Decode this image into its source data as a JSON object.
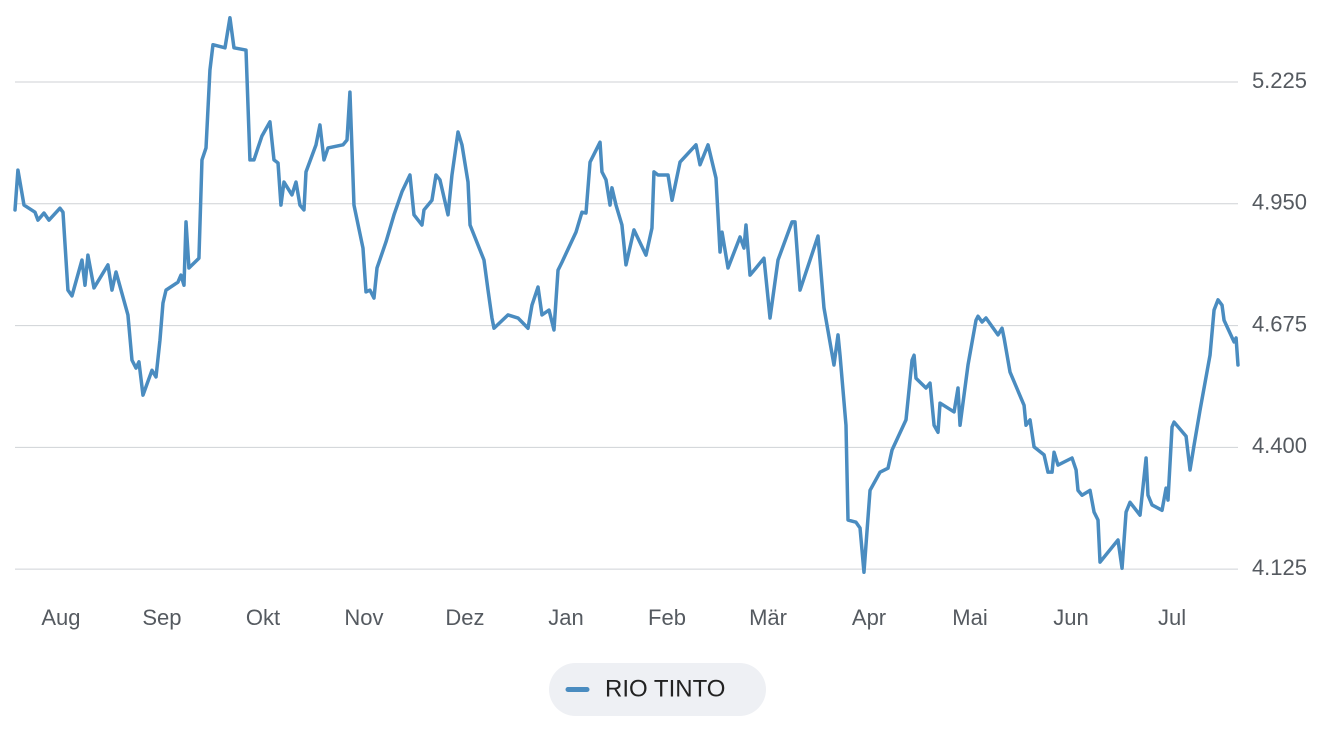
{
  "chart_data": {
    "type": "line",
    "xlim": [
      -0.455,
      11.653
    ],
    "xticks": [
      {
        "value": 0,
        "label": "Aug"
      },
      {
        "value": 1,
        "label": "Sep"
      },
      {
        "value": 2,
        "label": "Okt"
      },
      {
        "value": 3,
        "label": "Nov"
      },
      {
        "value": 4,
        "label": "Dez"
      },
      {
        "value": 5,
        "label": "Jan"
      },
      {
        "value": 6,
        "label": "Feb"
      },
      {
        "value": 7,
        "label": "Mär"
      },
      {
        "value": 8,
        "label": "Apr"
      },
      {
        "value": 9,
        "label": "Mai"
      },
      {
        "value": 10,
        "label": "Jun"
      },
      {
        "value": 11,
        "label": "Jul"
      }
    ],
    "ylim": [
      4.078,
      5.41
    ],
    "yticks": [
      5.225,
      {
        "value": 4.95,
        "label": "4.950"
      },
      4.675,
      {
        "value": 4.4,
        "label": "4.400"
      },
      4.125
    ],
    "grid": true,
    "y_axis_side": "right",
    "legend_position": "bottom",
    "x": [
      -0.455,
      -0.426,
      -0.366,
      -0.257,
      -0.228,
      -0.168,
      -0.119,
      -0.01,
      0.02,
      0.069,
      0.109,
      0.208,
      0.238,
      0.267,
      0.327,
      0.465,
      0.505,
      0.545,
      0.663,
      0.703,
      0.743,
      0.772,
      0.812,
      0.901,
      0.941,
      0.98,
      1.01,
      1.04,
      1.158,
      1.188,
      1.218,
      1.238,
      1.267,
      1.366,
      1.396,
      1.436,
      1.475,
      1.505,
      1.624,
      1.673,
      1.713,
      1.832,
      1.871,
      1.911,
      1.95,
      1.99,
      2.069,
      2.109,
      2.149,
      2.178,
      2.208,
      2.287,
      2.327,
      2.366,
      2.406,
      2.426,
      2.525,
      2.564,
      2.604,
      2.644,
      2.792,
      2.832,
      2.861,
      2.901,
      2.99,
      3.02,
      3.059,
      3.099,
      3.129,
      3.218,
      3.297,
      3.376,
      3.455,
      3.495,
      3.574,
      3.594,
      3.673,
      3.713,
      3.752,
      3.832,
      3.871,
      3.931,
      3.97,
      4.03,
      4.05,
      4.188,
      4.228,
      4.267,
      4.287,
      4.426,
      4.525,
      4.624,
      4.663,
      4.723,
      4.762,
      4.832,
      4.881,
      4.921,
      4.96,
      5.099,
      5.158,
      5.198,
      5.238,
      5.337,
      5.356,
      5.396,
      5.436,
      5.455,
      5.495,
      5.554,
      5.594,
      5.673,
      5.792,
      5.851,
      5.871,
      5.911,
      6.01,
      6.05,
      6.129,
      6.287,
      6.327,
      6.406,
      6.485,
      6.525,
      6.545,
      6.604,
      6.723,
      6.762,
      6.782,
      6.822,
      6.881,
      6.96,
      7.02,
      7.099,
      7.238,
      7.267,
      7.317,
      7.495,
      7.554,
      7.653,
      7.693,
      7.713,
      7.772,
      7.792,
      7.871,
      7.911,
      7.95,
      8.01,
      8.109,
      8.188,
      8.228,
      8.366,
      8.426,
      8.446,
      8.465,
      8.564,
      8.604,
      8.644,
      8.683,
      8.703,
      8.842,
      8.881,
      8.901,
      8.98,
      9.059,
      9.079,
      9.119,
      9.158,
      9.277,
      9.317,
      9.337,
      9.396,
      9.535,
      9.554,
      9.594,
      9.634,
      9.733,
      9.772,
      9.812,
      9.832,
      9.871,
      10.01,
      10.05,
      10.069,
      10.109,
      10.188,
      10.228,
      10.267,
      10.287,
      10.465,
      10.505,
      10.545,
      10.584,
      10.683,
      10.743,
      10.762,
      10.802,
      10.901,
      10.941,
      10.96,
      11.0,
      11.02,
      11.139,
      11.178,
      11.218,
      11.277,
      11.376,
      11.416,
      11.455,
      11.495,
      11.515,
      11.614,
      11.634,
      11.653
    ],
    "series": [
      {
        "name": "RIO TINTO",
        "color": "#4a8cc0",
        "values": [
          4.936,
          5.026,
          4.947,
          4.931,
          4.913,
          4.929,
          4.913,
          4.94,
          4.931,
          4.755,
          4.742,
          4.823,
          4.766,
          4.834,
          4.76,
          4.812,
          4.755,
          4.796,
          4.699,
          4.597,
          4.579,
          4.593,
          4.518,
          4.574,
          4.559,
          4.642,
          4.726,
          4.755,
          4.773,
          4.789,
          4.766,
          4.909,
          4.805,
          4.827,
          5.049,
          5.076,
          5.252,
          5.309,
          5.302,
          5.37,
          5.302,
          5.297,
          5.049,
          5.049,
          5.076,
          5.103,
          5.135,
          5.049,
          5.042,
          4.947,
          4.999,
          4.97,
          4.999,
          4.947,
          4.936,
          5.022,
          5.083,
          5.128,
          5.049,
          5.076,
          5.083,
          5.094,
          5.202,
          4.947,
          4.85,
          4.751,
          4.755,
          4.737,
          4.805,
          4.864,
          4.925,
          4.977,
          5.015,
          4.925,
          4.902,
          4.936,
          4.958,
          5.015,
          5.004,
          4.925,
          5.015,
          5.112,
          5.083,
          4.999,
          4.902,
          4.823,
          4.755,
          4.692,
          4.669,
          4.699,
          4.692,
          4.669,
          4.721,
          4.762,
          4.699,
          4.71,
          4.665,
          4.8,
          4.818,
          4.886,
          4.931,
          4.929,
          5.044,
          5.089,
          5.022,
          5.004,
          4.947,
          4.986,
          4.947,
          4.902,
          4.812,
          4.891,
          4.834,
          4.895,
          5.022,
          5.015,
          5.015,
          4.958,
          5.044,
          5.083,
          5.038,
          5.083,
          5.008,
          4.841,
          4.886,
          4.805,
          4.875,
          4.85,
          4.902,
          4.789,
          4.805,
          4.827,
          4.692,
          4.823,
          4.909,
          4.909,
          4.755,
          4.877,
          4.715,
          4.586,
          4.654,
          4.608,
          4.45,
          4.236,
          4.231,
          4.218,
          4.118,
          4.303,
          4.344,
          4.353,
          4.394,
          4.462,
          4.597,
          4.608,
          4.556,
          4.534,
          4.545,
          4.45,
          4.434,
          4.5,
          4.48,
          4.534,
          4.45,
          4.586,
          4.687,
          4.696,
          4.683,
          4.692,
          4.654,
          4.669,
          4.647,
          4.57,
          4.495,
          4.45,
          4.462,
          4.401,
          4.383,
          4.344,
          4.344,
          4.389,
          4.36,
          4.376,
          4.349,
          4.303,
          4.292,
          4.303,
          4.254,
          4.236,
          4.141,
          4.191,
          4.127,
          4.254,
          4.276,
          4.247,
          4.376,
          4.292,
          4.27,
          4.258,
          4.308,
          4.281,
          4.446,
          4.457,
          4.425,
          4.349,
          4.405,
          4.484,
          4.608,
          4.71,
          4.733,
          4.721,
          4.687,
          4.638,
          4.647,
          4.586
        ]
      }
    ]
  }
}
